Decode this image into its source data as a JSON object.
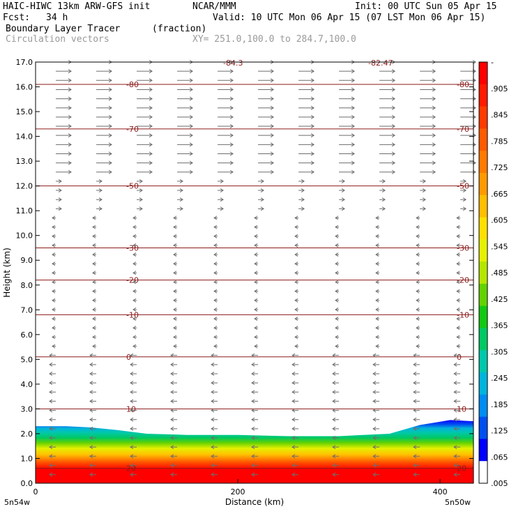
{
  "header": {
    "model": "HAIC-HIWC 13km ARW-GFS init",
    "org": "NCAR/MMM",
    "init": "Init: 00 UTC Sun 05 Apr 15",
    "fcst_label": "Fcst:",
    "fcst_value": "34 h",
    "valid": "Valid: 10 UTC Mon 06 Apr 15 (07 LST Mon 06 Apr 15)",
    "field": "Boundary Layer Tracer",
    "field_units": "(fraction)",
    "overlay": "Circulation vectors",
    "xy": "XY= 251.0,100.0 to 284.7,100.0"
  },
  "chart_data": {
    "type": "heatmap",
    "xlabel": "Distance (km)",
    "ylabel": "Height (km)",
    "xlim": [
      0,
      433
    ],
    "ylim": [
      0,
      17
    ],
    "x_ticks": [
      "0",
      "200",
      "400"
    ],
    "y_ticks": [
      "0.0",
      "1.0",
      "2.0",
      "3.0",
      "4.0",
      "5.0",
      "6.0",
      "7.0",
      "8.0",
      "9.0",
      "10.0",
      "11.0",
      "12.0",
      "13.0",
      "14.0",
      "15.0",
      "16.0",
      "17.0"
    ],
    "endpoints": {
      "left": "5n54w",
      "right": "5n50w"
    },
    "colorbar": {
      "labels": [
        "-",
        ".905",
        ".845",
        ".785",
        ".725",
        ".665",
        ".605",
        ".545",
        ".485",
        ".425",
        ".365",
        ".305",
        ".245",
        ".185",
        ".125",
        ".065",
        ".005"
      ],
      "colors": [
        "#ff0000",
        "#ff1a00",
        "#ff3a00",
        "#ff5a00",
        "#ff7a00",
        "#ff9a00",
        "#ffbe00",
        "#ffe000",
        "#e6f000",
        "#b4e600",
        "#64d200",
        "#14c814",
        "#00c864",
        "#00c8aa",
        "#00b4dc",
        "#008cf0",
        "#0050f0",
        "#0000ff",
        "#ffffff"
      ]
    },
    "tracer_top_km": [
      {
        "x": 0,
        "z": 2.3
      },
      {
        "x": 30,
        "z": 2.3
      },
      {
        "x": 55,
        "z": 2.25
      },
      {
        "x": 80,
        "z": 2.15
      },
      {
        "x": 110,
        "z": 2.0
      },
      {
        "x": 150,
        "z": 1.95
      },
      {
        "x": 200,
        "z": 1.95
      },
      {
        "x": 250,
        "z": 1.9
      },
      {
        "x": 300,
        "z": 1.9
      },
      {
        "x": 350,
        "z": 2.0
      },
      {
        "x": 380,
        "z": 2.35
      },
      {
        "x": 410,
        "z": 2.55
      },
      {
        "x": 433,
        "z": 2.5
      }
    ],
    "isotherms": [
      {
        "label": "-80",
        "z": 16.1
      },
      {
        "label": "-70",
        "z": 14.3
      },
      {
        "label": "-50",
        "z": 12.0
      },
      {
        "label": "-30",
        "z": 9.5
      },
      {
        "label": "-20",
        "z": 8.2
      },
      {
        "label": "-10",
        "z": 6.8
      },
      {
        "label": "0",
        "z": 5.1
      },
      {
        "label": "10",
        "z": 3.0
      },
      {
        "label": "20",
        "z": 0.6
      }
    ],
    "top_labels": [
      "-84.3",
      "-82.47"
    ]
  }
}
